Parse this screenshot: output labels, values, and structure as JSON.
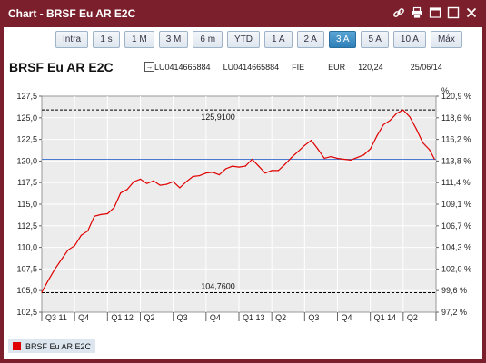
{
  "window": {
    "title": "Chart - BRSF Eu AR E2C",
    "icons": [
      "link-icon",
      "print-icon",
      "minimize-icon",
      "maximize-icon",
      "close-icon"
    ]
  },
  "periods": [
    "Intra",
    "1 s",
    "1 M",
    "3 M",
    "6 m",
    "YTD",
    "1 A",
    "2 A",
    "3 A",
    "5 A",
    "10 A",
    "Máx"
  ],
  "active_period": "3 A",
  "header": {
    "fund_name": "BRSF Eu AR E2C",
    "isin1": "LU0414665884",
    "isin2": "LU0414665884",
    "type": "FIE",
    "currency": "EUR",
    "price": "120,24",
    "date": "25/06/14"
  },
  "colors": {
    "series": "#e00000",
    "reference": "#4a7bd0",
    "plot_bg": "#ececec",
    "chrome": "#7a1f2b",
    "active_button": "#3a8cc4"
  },
  "chart_data": {
    "type": "line",
    "title": "",
    "xlabel": "",
    "ylabel": "",
    "ylim": [
      102.5,
      127.5
    ],
    "y_ticks": [
      "127,5",
      "125,0",
      "122,5",
      "120,0",
      "117,5",
      "115,0",
      "112,5",
      "110,0",
      "107,5",
      "105,0",
      "102,5"
    ],
    "y2_unit": "%",
    "y2_ticks": [
      "120,9 %",
      "118,6 %",
      "116,2 %",
      "113,8 %",
      "111,4 %",
      "109,1 %",
      "106,7 %",
      "104,3 %",
      "102,0 %",
      "99,6 %",
      "97,2 %"
    ],
    "x_ticks": [
      "Q3 11",
      "Q4",
      "Q1 12",
      "Q2",
      "Q3",
      "Q4",
      "Q1 13",
      "Q2",
      "Q3",
      "Q4",
      "Q1 14",
      "Q2"
    ],
    "grid": true,
    "max_label": "125,9100",
    "min_label": "104,7600",
    "max_value": 125.91,
    "min_value": 104.76,
    "reference_value": 120.2,
    "series": [
      {
        "name": "BRSF Eu AR E2C",
        "x": [
          0,
          0.2,
          0.4,
          0.6,
          0.8,
          1.0,
          1.2,
          1.4,
          1.6,
          1.8,
          2.0,
          2.2,
          2.4,
          2.6,
          2.8,
          3.0,
          3.2,
          3.4,
          3.6,
          3.8,
          4.0,
          4.2,
          4.4,
          4.6,
          4.8,
          5.0,
          5.2,
          5.4,
          5.6,
          5.8,
          6.0,
          6.2,
          6.4,
          6.6,
          6.8,
          7.0,
          7.2,
          7.4,
          7.6,
          7.8,
          8.0,
          8.2,
          8.4,
          8.6,
          8.8,
          9.0,
          9.2,
          9.4,
          9.6,
          9.8,
          10.0,
          10.2,
          10.4,
          10.6,
          10.8,
          11.0,
          11.2,
          11.4,
          11.6,
          11.8,
          11.95
        ],
        "y": [
          104.8,
          106.2,
          107.5,
          108.6,
          109.7,
          110.2,
          111.4,
          111.9,
          113.6,
          113.8,
          113.9,
          114.6,
          116.3,
          116.7,
          117.6,
          117.9,
          117.4,
          117.7,
          117.2,
          117.3,
          117.6,
          116.9,
          117.6,
          118.2,
          118.3,
          118.6,
          118.7,
          118.4,
          119.1,
          119.4,
          119.3,
          119.4,
          120.2,
          119.4,
          118.6,
          118.9,
          118.9,
          119.6,
          120.4,
          121.1,
          121.8,
          122.4,
          121.4,
          120.3,
          120.5,
          120.3,
          120.2,
          120.1,
          120.4,
          120.7,
          121.4,
          122.9,
          124.2,
          124.7,
          125.5,
          125.9,
          125.1,
          123.7,
          122.1,
          121.3,
          120.24
        ]
      }
    ]
  },
  "legend": {
    "label": "BRSF Eu AR E2C"
  }
}
